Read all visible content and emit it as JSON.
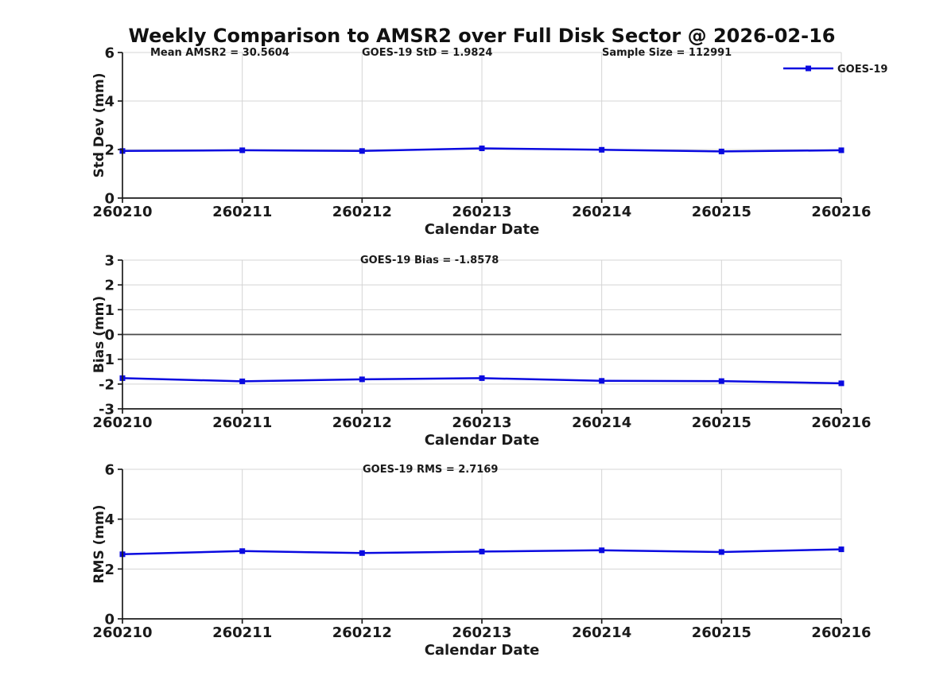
{
  "title": "Weekly Comparison to AMSR2 over Full Disk Sector @ 2026-02-16",
  "x_label": "Calendar Date",
  "categories": [
    "260210",
    "260211",
    "260212",
    "260213",
    "260214",
    "260215",
    "260216"
  ],
  "legend": {
    "label": "GOES-19",
    "position": "top-right"
  },
  "colors": {
    "line": "#0a0ae0",
    "marker": "#0a0ae0",
    "grid": "#d4d4d4",
    "axis": "#1c1c1c",
    "zero_line": "#4a4a4a",
    "text": "#1a1a1a",
    "background": "#ffffff"
  },
  "chart_data": [
    {
      "id": "stddev",
      "type": "line",
      "ylabel": "Std Dev (mm)",
      "ylim": [
        0,
        6
      ],
      "yticks": [
        0,
        2,
        4,
        6
      ],
      "grid": true,
      "zero_line": false,
      "legend_visible": true,
      "series": [
        {
          "name": "GOES-19",
          "marker": "square",
          "values": [
            1.94,
            1.97,
            1.94,
            2.05,
            1.99,
            1.92,
            1.97
          ]
        }
      ],
      "annotations": [
        {
          "text": "Mean AMSR2 = 30.5604",
          "x": 189
        },
        {
          "text": "GOES-19 StD = 1.9824",
          "x": 455
        },
        {
          "text": "Sample Size = 112991",
          "x": 757
        }
      ]
    },
    {
      "id": "bias",
      "type": "line",
      "ylabel": "Bias (mm)",
      "ylim": [
        -3,
        3
      ],
      "yticks": [
        3,
        2,
        1,
        0,
        -1,
        -2,
        -3
      ],
      "grid": true,
      "zero_line": true,
      "legend_visible": false,
      "series": [
        {
          "name": "GOES-19",
          "marker": "square",
          "values": [
            -1.76,
            -1.89,
            -1.81,
            -1.76,
            -1.87,
            -1.88,
            -1.97
          ]
        }
      ],
      "annotations": [
        {
          "text": "GOES-19 Bias  = -1.8578",
          "x": 453
        }
      ]
    },
    {
      "id": "rms",
      "type": "line",
      "ylabel": "RMS (mm)",
      "ylim": [
        0,
        6
      ],
      "yticks": [
        0,
        2,
        4,
        6
      ],
      "grid": true,
      "zero_line": false,
      "legend_visible": false,
      "series": [
        {
          "name": "GOES-19",
          "marker": "square",
          "values": [
            2.59,
            2.72,
            2.64,
            2.7,
            2.75,
            2.68,
            2.79
          ]
        }
      ],
      "annotations": [
        {
          "text": "GOES-19 RMS = 2.7169",
          "x": 456
        }
      ]
    }
  ]
}
